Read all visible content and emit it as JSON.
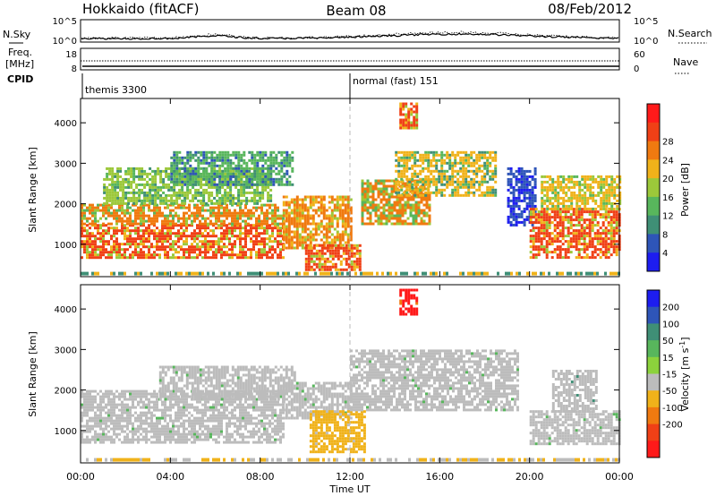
{
  "header": {
    "site": "Hokkaido (fitACF)",
    "beam": "Beam 08",
    "date": "08/Feb/2012"
  },
  "status_panels": {
    "nsky_label": "N.Sky",
    "nsearch_label": "N.Search",
    "nsky_ticks": [
      "10^5",
      "10^0"
    ],
    "nsky_ticks_right": [
      "10^5",
      "10^0"
    ],
    "freq_label": "Freq.",
    "freq_unit": "[MHz]",
    "freq_ticks": [
      "18",
      "8"
    ],
    "nave_label": "Nave",
    "nave_ticks": [
      "60",
      "0"
    ],
    "cpid_label": "CPID",
    "cpid_segments": [
      {
        "name": "themis 3300",
        "start_hour": 0
      },
      {
        "name": "normal (fast) 151",
        "start_hour": 12
      }
    ]
  },
  "chart_data": [
    {
      "type": "heatmap",
      "quantity": "power",
      "ylabel": "Slant Range [km]",
      "ylim": [
        200,
        4600
      ],
      "yticks": [
        "1000",
        "2000",
        "3000",
        "4000"
      ],
      "xlim_hours": [
        0,
        24
      ],
      "colorbar_label": "Power [dB]",
      "colorbar_ticks": [
        "4",
        "8",
        "12",
        "16",
        "20",
        "24",
        "28"
      ],
      "colors": [
        "#1d1df0",
        "#2e55b8",
        "#3f8f76",
        "#58b65c",
        "#9cc83a",
        "#f0b21a",
        "#f07a10",
        "#f04016",
        "#ff1a1a"
      ],
      "echo_regions": [
        {
          "t0": 0.0,
          "t1": 9.0,
          "r0": 700,
          "r1": 1500,
          "level": 28
        },
        {
          "t0": 0.0,
          "t1": 9.0,
          "r0": 1500,
          "r1": 2000,
          "level": 24
        },
        {
          "t0": 1.0,
          "t1": 8.5,
          "r0": 2000,
          "r1": 2900,
          "level": 18
        },
        {
          "t0": 4.0,
          "t1": 9.5,
          "r0": 2500,
          "r1": 3300,
          "level": 14
        },
        {
          "t0": 9.0,
          "t1": 12.0,
          "r0": 900,
          "r1": 2200,
          "level": 26
        },
        {
          "t0": 10.0,
          "t1": 12.5,
          "r0": 400,
          "r1": 1000,
          "level": 28
        },
        {
          "t0": 12.5,
          "t1": 15.5,
          "r0": 1500,
          "r1": 2600,
          "level": 24
        },
        {
          "t0": 14.0,
          "t1": 18.5,
          "r0": 2200,
          "r1": 3300,
          "level": 20
        },
        {
          "t0": 14.2,
          "t1": 15.0,
          "r0": 3900,
          "r1": 4500,
          "level": 28
        },
        {
          "t0": 19.0,
          "t1": 20.2,
          "r0": 1500,
          "r1": 2900,
          "level": 4
        },
        {
          "t0": 20.0,
          "t1": 24.0,
          "r0": 700,
          "r1": 1900,
          "level": 28
        },
        {
          "t0": 20.5,
          "t1": 24.0,
          "r0": 1900,
          "r1": 2700,
          "level": 22
        }
      ]
    },
    {
      "type": "heatmap",
      "quantity": "velocity",
      "ylabel": "Slant Range [km]",
      "ylim": [
        200,
        4600
      ],
      "yticks": [
        "1000",
        "2000",
        "3000",
        "4000"
      ],
      "xlim_hours": [
        0,
        24
      ],
      "xticks": [
        "00:00",
        "04:00",
        "08:00",
        "12:00",
        "16:00",
        "20:00",
        "00:00"
      ],
      "xlabel": "Time UT",
      "colorbar_label": "Velocity [m s",
      "colorbar_label_sup": "-1",
      "colorbar_label_end": "]",
      "colorbar_ticks": [
        "200",
        "100",
        "50",
        "15",
        "-15",
        "-50",
        "-100",
        "-200"
      ],
      "colors": [
        "#1d1df0",
        "#2e55b8",
        "#3f8f76",
        "#58b65c",
        "#8cd23c",
        "#bcbcbc",
        "#f0b21a",
        "#f07a10",
        "#f04016",
        "#ff1a1a"
      ],
      "echo_regions": [
        {
          "t0": 0.0,
          "t1": 9.0,
          "r0": 700,
          "r1": 2000,
          "level": 0
        },
        {
          "t0": 3.5,
          "t1": 9.5,
          "r0": 1800,
          "r1": 2600,
          "level": 0
        },
        {
          "t0": 9.0,
          "t1": 12.0,
          "r0": 1300,
          "r1": 2200,
          "level": 0
        },
        {
          "t0": 10.2,
          "t1": 12.6,
          "r0": 500,
          "r1": 1500,
          "level": -50
        },
        {
          "t0": 12.0,
          "t1": 19.5,
          "r0": 1500,
          "r1": 3000,
          "level": 0
        },
        {
          "t0": 14.2,
          "t1": 15.0,
          "r0": 3900,
          "r1": 4500,
          "level": -200
        },
        {
          "t0": 20.0,
          "t1": 24.0,
          "r0": 700,
          "r1": 1500,
          "level": 0
        },
        {
          "t0": 21.0,
          "t1": 23.0,
          "r0": 1500,
          "r1": 2500,
          "level": 15
        }
      ]
    }
  ]
}
